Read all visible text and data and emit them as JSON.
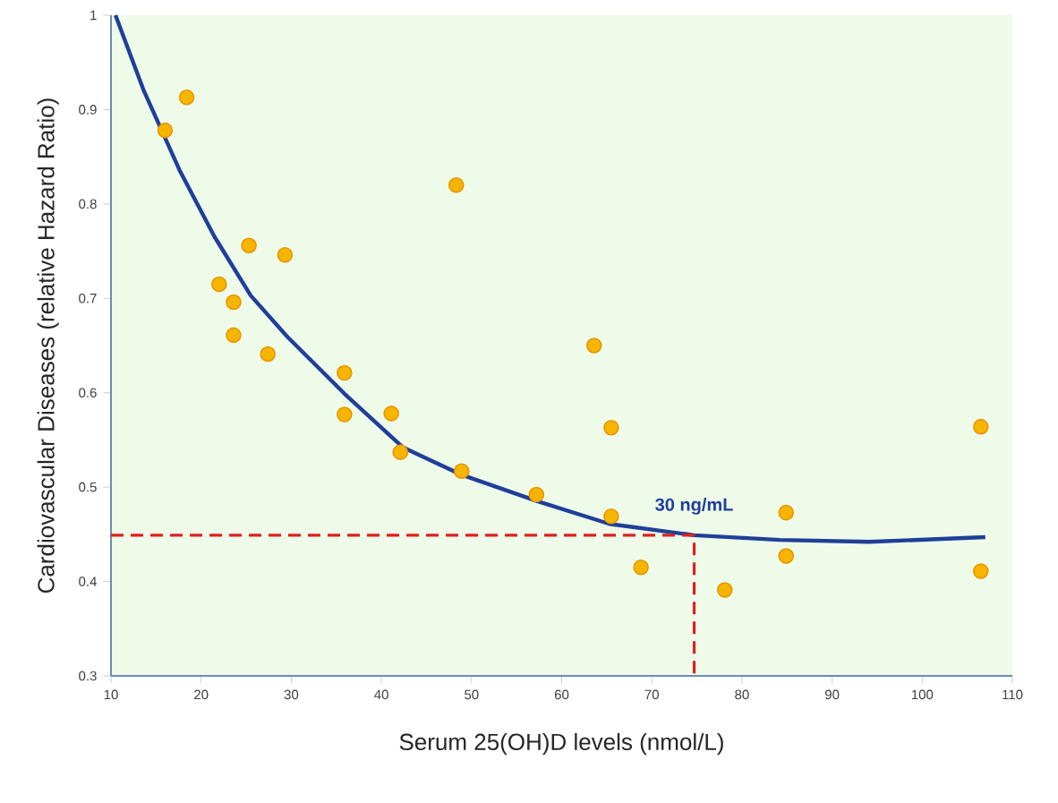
{
  "chart_data": {
    "type": "scatter",
    "xlabel": "Serum 25(OH)D levels (nmol/L)",
    "ylabel": "Cardiovascular Diseases (relative Hazard Ratio)",
    "xlim": [
      10,
      110
    ],
    "ylim": [
      0.3,
      1
    ],
    "xticks": [
      10,
      20,
      30,
      40,
      50,
      60,
      70,
      80,
      90,
      100,
      110
    ],
    "yticks": [
      0.3,
      0.4,
      0.5,
      0.6,
      0.7,
      0.8,
      0.9,
      1
    ],
    "grid": false,
    "marker": "circle",
    "series": [
      {
        "color": "#f7b500",
        "x": [
          16.0,
          18.4,
          22.0,
          25.3,
          23.6,
          23.6,
          29.3,
          27.4,
          35.9,
          35.9,
          41.1,
          42.1,
          48.3,
          48.9,
          57.2,
          63.6,
          65.5,
          65.5,
          68.8,
          78.1,
          84.9,
          84.9,
          106.5,
          106.5
        ],
        "values": [
          0.878,
          0.913,
          0.715,
          0.756,
          0.696,
          0.661,
          0.746,
          0.641,
          0.621,
          0.577,
          0.578,
          0.537,
          0.82,
          0.517,
          0.492,
          0.65,
          0.563,
          0.469,
          0.415,
          0.391,
          0.473,
          0.427,
          0.564,
          0.411
        ]
      },
      {
        "type": "line",
        "color": "#1f3f99",
        "marker": "none",
        "line_style": "solid",
        "x": [
          10.5,
          13.6,
          17.6,
          21.5,
          25.5,
          29.5,
          35.9,
          42.4,
          48.9,
          57.3,
          65.3,
          74.7,
          84.2,
          94.1,
          107.0
        ],
        "values": [
          1.0,
          0.921,
          0.836,
          0.765,
          0.703,
          0.66,
          0.599,
          0.542,
          0.513,
          0.485,
          0.461,
          0.449,
          0.444,
          0.442,
          0.447
        ]
      },
      {
        "type": "line",
        "color": "#e02020",
        "marker": "none",
        "line_style": "dashed",
        "x": [
          10,
          74.7,
          74.7
        ],
        "values": [
          0.449,
          0.449,
          0.3
        ]
      }
    ],
    "annotations": [
      {
        "text": "30 ng/mL",
        "x": 74.7,
        "y": 0.449
      }
    ]
  }
}
